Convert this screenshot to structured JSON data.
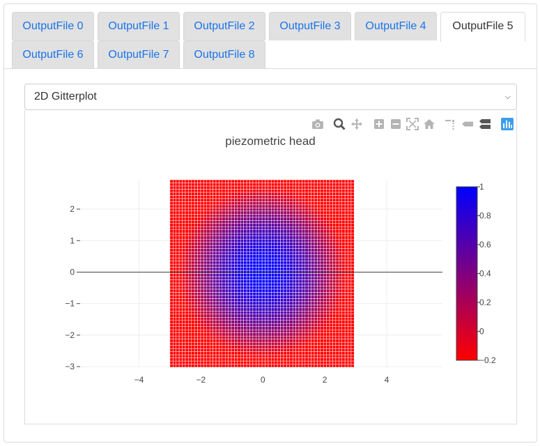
{
  "tabs": [
    {
      "label": "OutputFile 0",
      "active": false
    },
    {
      "label": "OutputFile 1",
      "active": false
    },
    {
      "label": "OutputFile 2",
      "active": false
    },
    {
      "label": "OutputFile 3",
      "active": false
    },
    {
      "label": "OutputFile 4",
      "active": false
    },
    {
      "label": "OutputFile 5",
      "active": true
    },
    {
      "label": "OutputFile 6",
      "active": false
    },
    {
      "label": "OutputFile 7",
      "active": false
    },
    {
      "label": "OutputFile 8",
      "active": false
    }
  ],
  "plot_type_select": {
    "value": "2D Gitterplot"
  },
  "modebar": {
    "icons": [
      "camera-icon",
      "zoom-icon",
      "pan-icon",
      "zoom-in-icon",
      "zoom-out-icon",
      "autoscale-icon",
      "reset-axes-icon",
      "spike-lines-icon",
      "hover-closest-icon",
      "hover-compare-icon",
      "plotly-logo-icon"
    ],
    "active_color": "#1f77b4",
    "inactive_color": "#b4b4b4"
  },
  "chart_data": {
    "type": "heatmap",
    "title": "piezometric head",
    "xlabel": "",
    "ylabel": "",
    "x_ticks": [
      -4,
      -2,
      0,
      2,
      4
    ],
    "x_tick_labels": [
      "−4",
      "−2",
      "0",
      "2",
      "4"
    ],
    "y_ticks": [
      -3,
      -2,
      -1,
      0,
      1,
      2
    ],
    "y_tick_labels": [
      "−3",
      "−2",
      "−1",
      "0",
      "1",
      "2"
    ],
    "xlim": [
      -5.9,
      5.8
    ],
    "ylim": [
      -3.02,
      2.93
    ],
    "grid": true,
    "z_function": "cos(0.65*r)",
    "grid_x_range": [
      -3.0,
      2.95
    ],
    "grid_y_range": [
      -3.02,
      2.93
    ],
    "grid_cells": 60,
    "colorscale": {
      "min": -0.2,
      "max": 1.0,
      "colors": [
        "#ff0000",
        "#0000ff"
      ],
      "ticks": [
        1,
        0.8,
        0.6,
        0.4,
        0.2,
        0,
        -0.2
      ],
      "tick_labels": [
        "1",
        "0.8",
        "0.6",
        "0.4",
        "0.2",
        "0",
        "−0.2"
      ]
    }
  }
}
